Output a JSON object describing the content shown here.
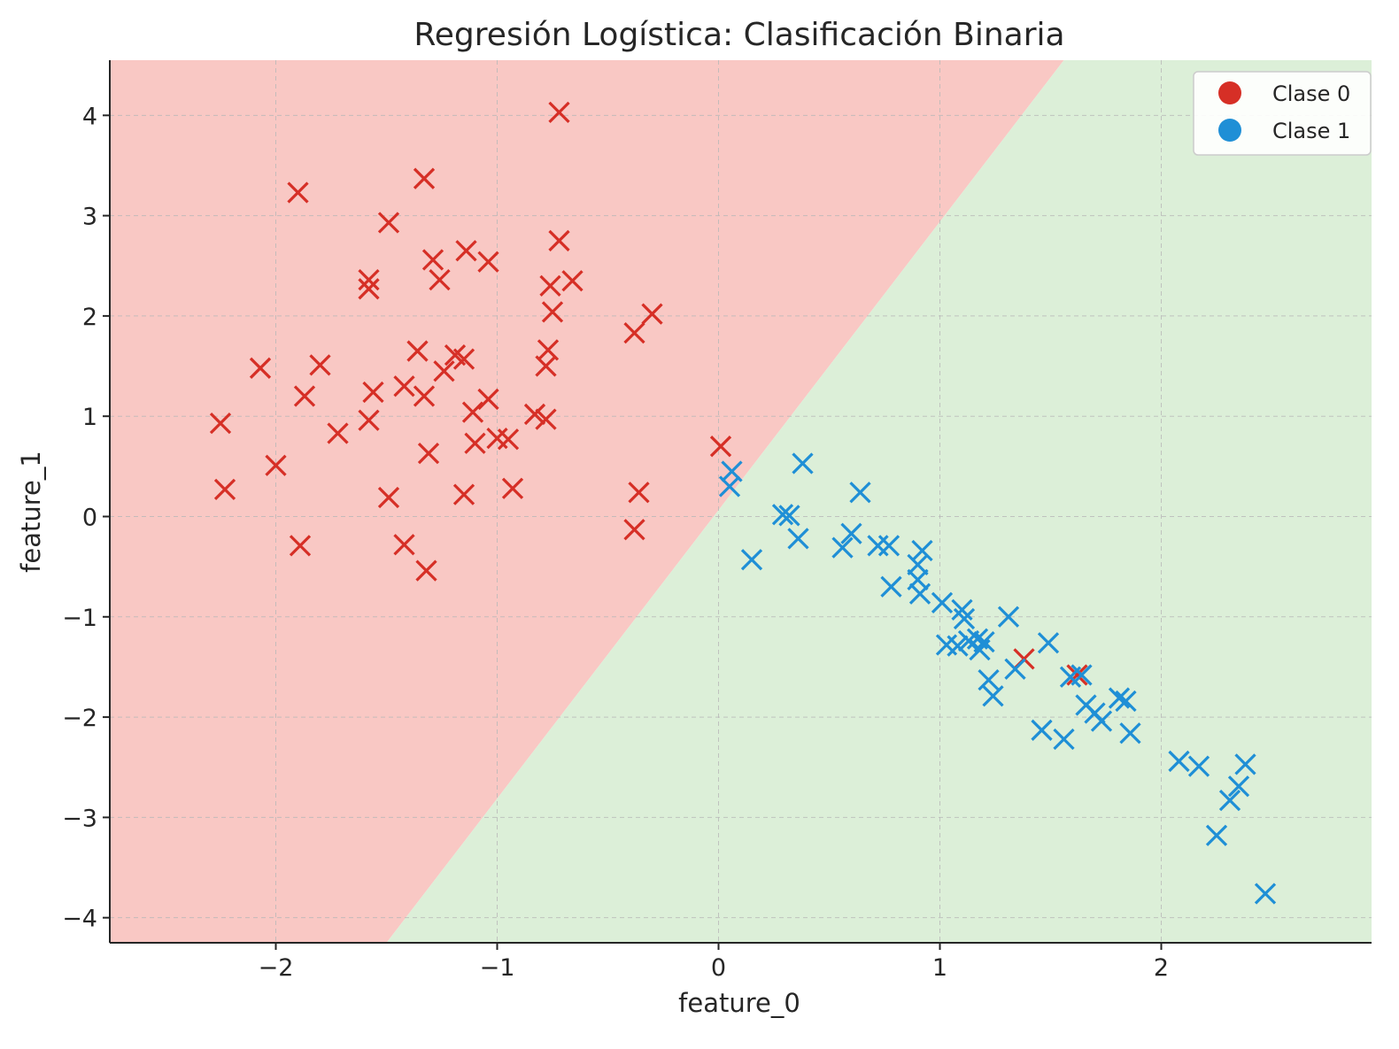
{
  "chart_data": {
    "type": "scatter",
    "title": "Regresión Logística: Clasificación Binaria",
    "xlabel": "feature_0",
    "ylabel": "feature_1",
    "xlim": [
      -2.75,
      2.95
    ],
    "ylim": [
      -4.25,
      4.55
    ],
    "x_ticks": [
      -2,
      -1,
      0,
      1,
      2
    ],
    "y_ticks": [
      -4,
      -3,
      -2,
      -1,
      0,
      1,
      2,
      3,
      4
    ],
    "x_tick_labels": [
      "−2",
      "−1",
      "0",
      "1",
      "2"
    ],
    "y_tick_labels": [
      "−4",
      "−3",
      "−2",
      "−1",
      "0",
      "1",
      "2",
      "3",
      "4"
    ],
    "grid": true,
    "legend_position": "top-right",
    "colors": {
      "clase0": "#d62f26",
      "clase1": "#1f8fd6",
      "region0": "#f9c8c4",
      "region1": "#dcefd8",
      "grid": "#b8b8b8",
      "axis": "#262626"
    },
    "decision_boundary": {
      "description": "linear",
      "points": [
        [
          -1.5,
          -4.25
        ],
        [
          1.56,
          4.55
        ]
      ]
    },
    "series": [
      {
        "name": "Clase 0",
        "marker": "x",
        "color": "#d62f26",
        "points": [
          [
            -2.25,
            0.93
          ],
          [
            -2.23,
            0.27
          ],
          [
            -2.07,
            1.48
          ],
          [
            -2.0,
            0.51
          ],
          [
            -1.9,
            3.23
          ],
          [
            -1.89,
            -0.29
          ],
          [
            -1.87,
            1.2
          ],
          [
            -1.8,
            1.51
          ],
          [
            -1.72,
            0.83
          ],
          [
            -1.58,
            2.36
          ],
          [
            -1.58,
            2.27
          ],
          [
            -1.56,
            1.24
          ],
          [
            -1.58,
            0.96
          ],
          [
            -1.49,
            2.93
          ],
          [
            -1.49,
            0.19
          ],
          [
            -1.42,
            1.3
          ],
          [
            -1.42,
            -0.28
          ],
          [
            -1.36,
            1.65
          ],
          [
            -1.33,
            1.2
          ],
          [
            -1.33,
            3.37
          ],
          [
            -1.31,
            0.63
          ],
          [
            -1.32,
            -0.54
          ],
          [
            -1.29,
            2.56
          ],
          [
            -1.26,
            2.36
          ],
          [
            -1.24,
            1.45
          ],
          [
            -1.19,
            1.61
          ],
          [
            -1.15,
            1.57
          ],
          [
            -1.14,
            2.65
          ],
          [
            -1.15,
            0.22
          ],
          [
            -1.11,
            1.04
          ],
          [
            -1.1,
            0.73
          ],
          [
            -1.04,
            1.17
          ],
          [
            -1.04,
            2.54
          ],
          [
            -1.0,
            0.78
          ],
          [
            -0.95,
            0.77
          ],
          [
            -0.93,
            0.28
          ],
          [
            -0.83,
            1.02
          ],
          [
            -0.78,
            0.97
          ],
          [
            -0.78,
            1.5
          ],
          [
            -0.77,
            1.66
          ],
          [
            -0.76,
            2.3
          ],
          [
            -0.75,
            2.04
          ],
          [
            -0.72,
            2.75
          ],
          [
            -0.72,
            4.03
          ],
          [
            -0.66,
            2.35
          ],
          [
            -0.38,
            1.83
          ],
          [
            -0.3,
            2.02
          ],
          [
            -0.36,
            0.24
          ],
          [
            -0.38,
            -0.13
          ],
          [
            0.01,
            0.7
          ],
          [
            1.38,
            -1.42
          ],
          [
            1.62,
            -1.58
          ]
        ]
      },
      {
        "name": "Clase 1",
        "marker": "x",
        "color": "#1f8fd6",
        "points": [
          [
            0.06,
            0.45
          ],
          [
            0.05,
            0.3
          ],
          [
            0.15,
            -0.43
          ],
          [
            0.29,
            0.02
          ],
          [
            0.32,
            0.01
          ],
          [
            0.38,
            0.53
          ],
          [
            0.36,
            -0.22
          ],
          [
            0.56,
            -0.31
          ],
          [
            0.6,
            -0.17
          ],
          [
            0.64,
            0.24
          ],
          [
            0.72,
            -0.29
          ],
          [
            0.77,
            -0.29
          ],
          [
            0.78,
            -0.7
          ],
          [
            0.9,
            -0.48
          ],
          [
            0.92,
            -0.34
          ],
          [
            0.9,
            -0.63
          ],
          [
            0.91,
            -0.77
          ],
          [
            1.01,
            -0.86
          ],
          [
            1.03,
            -1.28
          ],
          [
            1.08,
            -1.29
          ],
          [
            1.1,
            -0.93
          ],
          [
            1.11,
            -1.02
          ],
          [
            1.13,
            -1.24
          ],
          [
            1.17,
            -1.22
          ],
          [
            1.18,
            -1.33
          ],
          [
            1.2,
            -1.25
          ],
          [
            1.22,
            -1.63
          ],
          [
            1.24,
            -1.79
          ],
          [
            1.31,
            -1.0
          ],
          [
            1.34,
            -1.52
          ],
          [
            1.49,
            -1.26
          ],
          [
            1.46,
            -2.13
          ],
          [
            1.56,
            -2.22
          ],
          [
            1.59,
            -1.6
          ],
          [
            1.64,
            -1.58
          ],
          [
            1.66,
            -1.88
          ],
          [
            1.7,
            -1.96
          ],
          [
            1.73,
            -2.04
          ],
          [
            1.81,
            -1.81
          ],
          [
            1.84,
            -1.84
          ],
          [
            1.86,
            -2.16
          ],
          [
            2.08,
            -2.44
          ],
          [
            2.17,
            -2.49
          ],
          [
            2.25,
            -3.18
          ],
          [
            2.31,
            -2.83
          ],
          [
            2.35,
            -2.69
          ],
          [
            2.38,
            -2.47
          ],
          [
            2.47,
            -3.76
          ]
        ]
      }
    ]
  }
}
